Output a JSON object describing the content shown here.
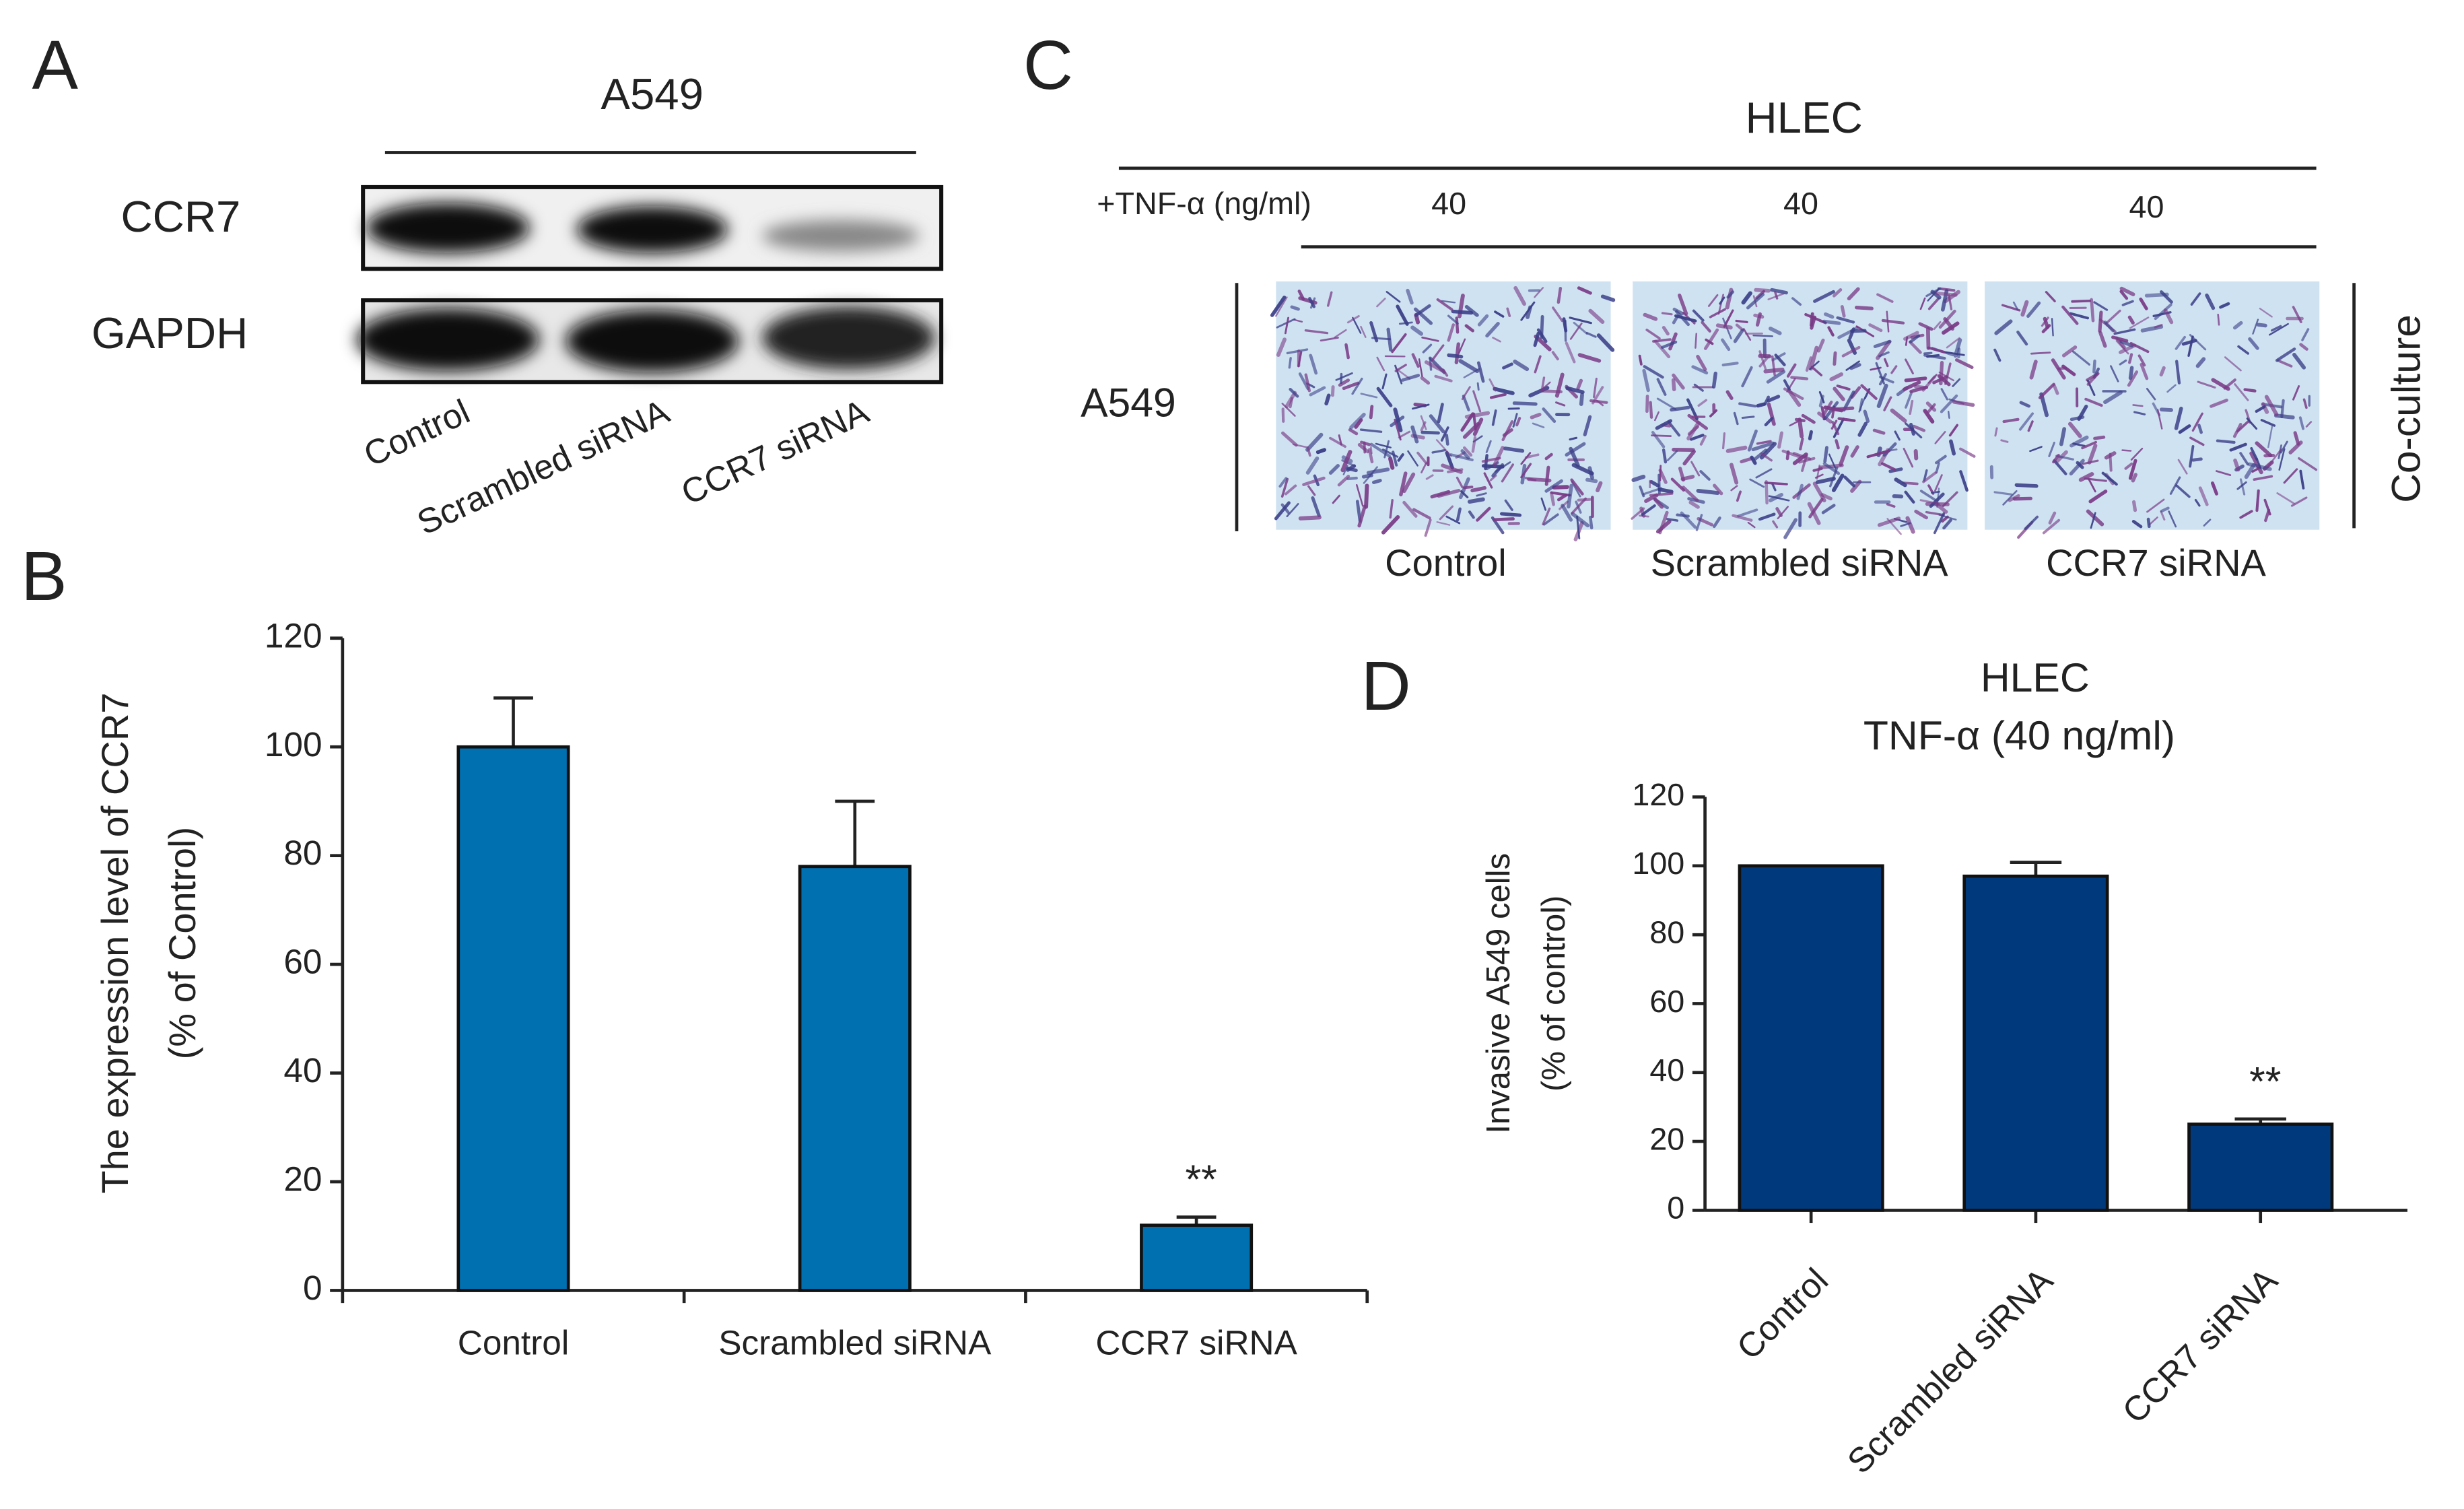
{
  "blot": {
    "panel_label": "A",
    "title": "A549",
    "rows": [
      "CCR7",
      "GAPDH"
    ],
    "lanes": [
      "Control",
      "Scrambled siRNA",
      "CCR7 siRNA"
    ]
  },
  "micrographs": {
    "panel_label": "C",
    "title": "HLEC",
    "treatment": "+TNF-α (ng/ml)",
    "doses": [
      "40",
      "40",
      "40"
    ],
    "row_label": "A549",
    "side_label": "Co-culture",
    "lanes": [
      "Control",
      "Scrambled siRNA",
      "CCR7 siRNA"
    ]
  },
  "chart_data": [
    {
      "type": "bar",
      "panel_label": "B",
      "ylabel": [
        "The expression level of CCR7",
        "(% of Control)"
      ],
      "categories": [
        "Control",
        "Scrambled siRNA",
        "CCR7 siRNA"
      ],
      "values": [
        100,
        78,
        12
      ],
      "errors": [
        9,
        12,
        1.5
      ],
      "significance": [
        null,
        null,
        "**"
      ],
      "color": "#0070b0",
      "ylim": [
        0,
        120
      ],
      "yticks": [
        0,
        20,
        40,
        60,
        80,
        100,
        120
      ]
    },
    {
      "type": "bar",
      "panel_label": "D",
      "title": [
        "HLEC",
        "TNF-α  (40 ng/ml)"
      ],
      "ylabel": [
        "Invasive A549 cells",
        "(% of control)"
      ],
      "categories": [
        "Control",
        "Scrambled siRNA",
        "CCR7 siRNA"
      ],
      "values": [
        100,
        97,
        25
      ],
      "errors": [
        0,
        4,
        1.5
      ],
      "significance": [
        null,
        null,
        "**"
      ],
      "color": "#003a7d",
      "ylim": [
        0,
        120
      ],
      "yticks": [
        0,
        20,
        40,
        60,
        80,
        100,
        120
      ]
    }
  ]
}
